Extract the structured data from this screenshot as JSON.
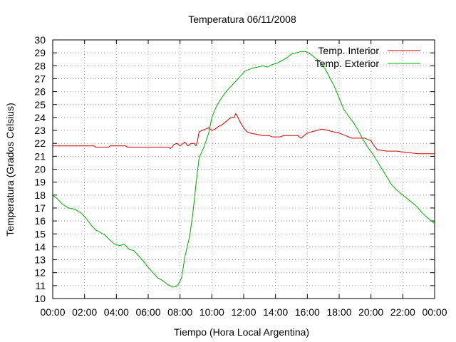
{
  "chart_data": {
    "type": "line",
    "title": "Temperatura 06/11/2008",
    "xlabel": "Tiempo (Hora Local Argentina)",
    "ylabel": "Temperatura (Grados Celsius)",
    "xlim": [
      0,
      24
    ],
    "ylim": [
      10,
      30
    ],
    "grid": true,
    "legend_position": "top-right",
    "x_ticks": [
      0,
      2,
      4,
      6,
      8,
      10,
      12,
      14,
      16,
      18,
      20,
      22,
      24
    ],
    "x_tick_labels": [
      "00:00",
      "02:00",
      "04:00",
      "06:00",
      "08:00",
      "10:00",
      "12:00",
      "14:00",
      "16:00",
      "18:00",
      "20:00",
      "22:00",
      "00:00"
    ],
    "y_ticks": [
      10,
      11,
      12,
      13,
      14,
      15,
      16,
      17,
      18,
      19,
      20,
      21,
      22,
      23,
      24,
      25,
      26,
      27,
      28,
      29,
      30
    ],
    "y_tick_labels": [
      "10",
      "11",
      "12",
      "13",
      "14",
      "15",
      "16",
      "17",
      "18",
      "19",
      "20",
      "21",
      "22",
      "23",
      "24",
      "25",
      "26",
      "27",
      "28",
      "29",
      "30"
    ],
    "series": [
      {
        "name": "Temp. Interior",
        "color": "#cc0000",
        "points": [
          [
            0.0,
            21.8
          ],
          [
            1.0,
            21.8
          ],
          [
            2.0,
            21.8
          ],
          [
            2.6,
            21.8
          ],
          [
            2.7,
            21.7
          ],
          [
            3.5,
            21.7
          ],
          [
            3.6,
            21.8
          ],
          [
            4.6,
            21.8
          ],
          [
            4.7,
            21.7
          ],
          [
            7.3,
            21.7
          ],
          [
            7.4,
            21.6
          ],
          [
            7.5,
            21.7
          ],
          [
            7.6,
            21.9
          ],
          [
            7.8,
            22.0
          ],
          [
            8.0,
            21.8
          ],
          [
            8.1,
            21.9
          ],
          [
            8.3,
            22.1
          ],
          [
            8.5,
            21.8
          ],
          [
            8.7,
            22.0
          ],
          [
            8.9,
            22.0
          ],
          [
            9.0,
            21.8
          ],
          [
            9.1,
            22.2
          ],
          [
            9.2,
            22.9
          ],
          [
            9.4,
            23.0
          ],
          [
            9.6,
            23.1
          ],
          [
            9.8,
            23.2
          ],
          [
            10.0,
            23.0
          ],
          [
            10.2,
            23.1
          ],
          [
            10.4,
            23.3
          ],
          [
            10.6,
            23.4
          ],
          [
            10.8,
            23.6
          ],
          [
            11.0,
            23.8
          ],
          [
            11.2,
            24.0
          ],
          [
            11.4,
            24.0
          ],
          [
            11.5,
            24.3
          ],
          [
            11.6,
            24.1
          ],
          [
            11.8,
            23.6
          ],
          [
            12.0,
            23.2
          ],
          [
            12.2,
            22.9
          ],
          [
            12.4,
            22.8
          ],
          [
            12.8,
            22.7
          ],
          [
            13.2,
            22.6
          ],
          [
            13.6,
            22.6
          ],
          [
            13.8,
            22.5
          ],
          [
            14.3,
            22.5
          ],
          [
            14.5,
            22.6
          ],
          [
            15.0,
            22.6
          ],
          [
            15.4,
            22.6
          ],
          [
            15.6,
            22.4
          ],
          [
            15.8,
            22.6
          ],
          [
            16.0,
            22.8
          ],
          [
            16.3,
            22.9
          ],
          [
            16.6,
            23.0
          ],
          [
            16.9,
            23.1
          ],
          [
            17.3,
            23.0
          ],
          [
            17.6,
            22.9
          ],
          [
            18.0,
            22.8
          ],
          [
            18.4,
            22.6
          ],
          [
            18.8,
            22.4
          ],
          [
            19.6,
            22.4
          ],
          [
            20.0,
            22.2
          ],
          [
            20.2,
            21.8
          ],
          [
            20.4,
            21.5
          ],
          [
            21.0,
            21.4
          ],
          [
            21.6,
            21.4
          ],
          [
            22.2,
            21.3
          ],
          [
            23.0,
            21.2
          ],
          [
            24.0,
            21.2
          ]
        ]
      },
      {
        "name": "Temp. Exterior",
        "color": "#00aa00",
        "points": [
          [
            0.0,
            18.0
          ],
          [
            0.3,
            17.7
          ],
          [
            0.6,
            17.3
          ],
          [
            1.0,
            17.0
          ],
          [
            1.4,
            16.9
          ],
          [
            1.8,
            16.6
          ],
          [
            2.1,
            16.2
          ],
          [
            2.4,
            15.7
          ],
          [
            2.7,
            15.3
          ],
          [
            3.0,
            15.1
          ],
          [
            3.3,
            14.9
          ],
          [
            3.6,
            14.5
          ],
          [
            3.9,
            14.2
          ],
          [
            4.2,
            14.1
          ],
          [
            4.5,
            14.2
          ],
          [
            4.8,
            13.8
          ],
          [
            5.1,
            13.7
          ],
          [
            5.4,
            13.3
          ],
          [
            5.7,
            12.9
          ],
          [
            6.0,
            12.4
          ],
          [
            6.3,
            12.0
          ],
          [
            6.6,
            11.6
          ],
          [
            6.9,
            11.4
          ],
          [
            7.2,
            11.1
          ],
          [
            7.5,
            10.9
          ],
          [
            7.7,
            10.9
          ],
          [
            7.9,
            11.1
          ],
          [
            8.1,
            11.6
          ],
          [
            8.3,
            13.2
          ],
          [
            8.6,
            14.8
          ],
          [
            8.8,
            16.5
          ],
          [
            9.0,
            18.8
          ],
          [
            9.2,
            20.9
          ],
          [
            9.5,
            21.7
          ],
          [
            9.8,
            22.8
          ],
          [
            10.0,
            24.0
          ],
          [
            10.3,
            24.9
          ],
          [
            10.6,
            25.5
          ],
          [
            10.9,
            26.0
          ],
          [
            11.2,
            26.4
          ],
          [
            11.5,
            26.8
          ],
          [
            11.8,
            27.2
          ],
          [
            12.1,
            27.6
          ],
          [
            12.5,
            27.8
          ],
          [
            12.9,
            27.9
          ],
          [
            13.2,
            28.0
          ],
          [
            13.5,
            27.9
          ],
          [
            13.8,
            28.1
          ],
          [
            14.1,
            28.2
          ],
          [
            14.4,
            28.4
          ],
          [
            14.7,
            28.6
          ],
          [
            15.0,
            28.9
          ],
          [
            15.3,
            29.0
          ],
          [
            15.6,
            29.1
          ],
          [
            15.9,
            29.1
          ],
          [
            16.2,
            28.9
          ],
          [
            16.5,
            28.6
          ],
          [
            16.8,
            28.3
          ],
          [
            17.1,
            27.8
          ],
          [
            17.4,
            27.1
          ],
          [
            17.7,
            26.4
          ],
          [
            18.0,
            25.5
          ],
          [
            18.3,
            24.6
          ],
          [
            18.6,
            24.1
          ],
          [
            18.9,
            23.6
          ],
          [
            19.2,
            23.0
          ],
          [
            19.5,
            22.3
          ],
          [
            19.8,
            21.7
          ],
          [
            20.1,
            21.2
          ],
          [
            20.4,
            20.6
          ],
          [
            20.7,
            20.0
          ],
          [
            21.0,
            19.4
          ],
          [
            21.3,
            18.8
          ],
          [
            21.6,
            18.4
          ],
          [
            21.9,
            18.1
          ],
          [
            22.2,
            17.8
          ],
          [
            22.5,
            17.5
          ],
          [
            22.8,
            17.2
          ],
          [
            23.1,
            16.8
          ],
          [
            23.4,
            16.4
          ],
          [
            23.7,
            16.1
          ],
          [
            24.0,
            15.8
          ]
        ]
      }
    ]
  }
}
